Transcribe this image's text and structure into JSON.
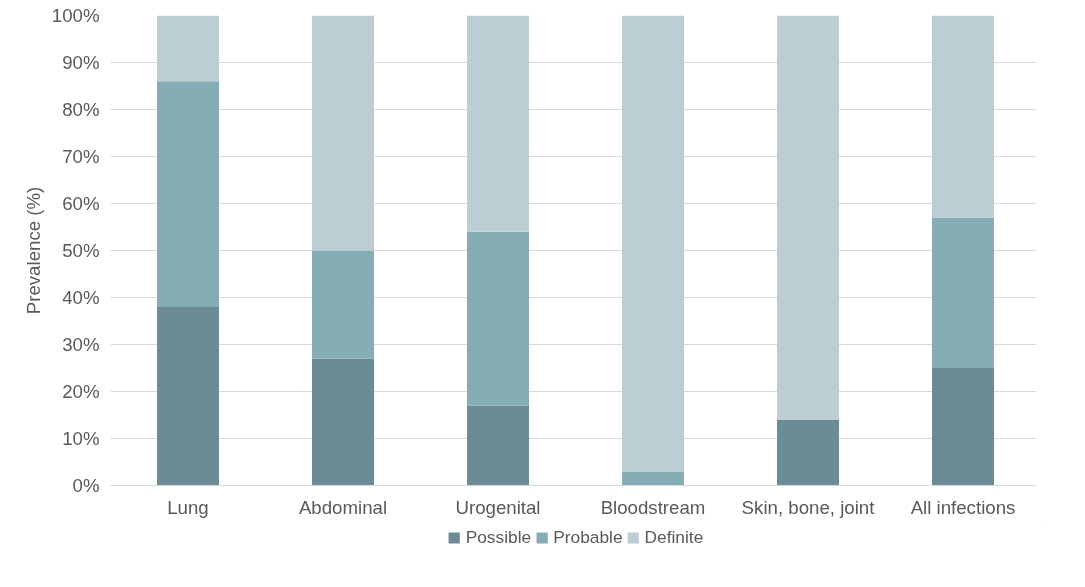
{
  "chart_data": {
    "type": "bar",
    "stacked": true,
    "ylabel": "Prevalence (%)",
    "categories": [
      "Lung",
      "Abdominal",
      "Urogenital",
      "Bloodstream",
      "Skin, bone, joint",
      "All infections"
    ],
    "series": [
      {
        "name": "Possible",
        "color": "#6b8c94",
        "values": [
          38,
          27,
          17,
          0,
          14,
          25
        ]
      },
      {
        "name": "Probable",
        "color": "#84adb6",
        "values": [
          48,
          23,
          37,
          3,
          0,
          32
        ]
      },
      {
        "name": "Definite",
        "color": "#bccdd4",
        "values": [
          14,
          50,
          46,
          97,
          86,
          43
        ]
      }
    ],
    "ylim": [
      0,
      100
    ],
    "yticks": [
      {
        "value": 0,
        "label": "0%"
      },
      {
        "value": 10,
        "label": "10%"
      },
      {
        "value": 20,
        "label": "20%"
      },
      {
        "value": 30,
        "label": "30%"
      },
      {
        "value": 40,
        "label": "40%"
      },
      {
        "value": 50,
        "label": "50%"
      },
      {
        "value": 60,
        "label": "60%"
      },
      {
        "value": 70,
        "label": "70%"
      },
      {
        "value": 80,
        "label": "80%"
      },
      {
        "value": 90,
        "label": "90%"
      },
      {
        "value": 100,
        "label": "100%"
      }
    ],
    "grid": "y",
    "legend": "bottom"
  }
}
